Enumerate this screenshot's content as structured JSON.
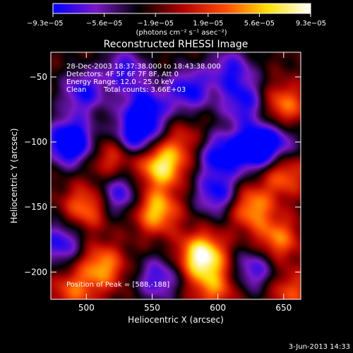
{
  "chart_data": {
    "type": "heatmap",
    "title": "Reconstructed RHESSI Image",
    "xlabel": "Heliocentric X (arcsec)",
    "ylabel": "Heliocentric Y (arcsec)",
    "xlim": [
      473,
      663
    ],
    "ylim": [
      -221,
      -31
    ],
    "x_ticks": [
      500,
      550,
      600,
      650
    ],
    "y_ticks": [
      -50,
      -100,
      -150,
      -200
    ],
    "x_tick_labels": [
      "500",
      "550",
      "600",
      "650"
    ],
    "y_tick_labels": [
      "−50",
      "−100",
      "−150",
      "−200"
    ],
    "colorbar": {
      "ticks": [
        -9.3e-05,
        -5.6e-05,
        -1.9e-05,
        1.9e-05,
        5.6e-05,
        9.3e-05
      ],
      "tick_labels": [
        "−9.3e−05",
        "−5.6e−05",
        "−1.9e−05",
        "1.9e−05",
        "5.6e−05",
        "9.3e−05"
      ],
      "unit_text": "(photons cm⁻² s⁻¹ asec⁻²)",
      "colors": [
        "#0000ff",
        "#7a18c8",
        "#000000",
        "#b00000",
        "#ff4a00",
        "#ffe100",
        "#ffffff"
      ]
    },
    "annotations": [
      "28-Dec-2003 18:37:38.000 to 18:43:38.000",
      "Detectors: 4F 5F 6F 7F 8F, Att 0",
      "Energy Range: 12.0 - 25.0 keV",
      "Clean",
      "Total counts: 3.66E+03"
    ],
    "peak_label": "Position of Peak = [588,-188]",
    "peak": [
      588,
      -188
    ],
    "sources": [
      {
        "x": 588,
        "y": -188,
        "v": 1.0
      },
      {
        "x": 557,
        "y": -118,
        "v": 0.85
      },
      {
        "x": 553,
        "y": -153,
        "v": 0.72
      },
      {
        "x": 512,
        "y": -196,
        "v": 0.62
      },
      {
        "x": 500,
        "y": -150,
        "v": 0.55
      },
      {
        "x": 625,
        "y": -150,
        "v": 0.62
      },
      {
        "x": 645,
        "y": -175,
        "v": 0.55
      },
      {
        "x": 650,
        "y": -125,
        "v": 0.5
      },
      {
        "x": 650,
        "y": -72,
        "v": 0.55
      },
      {
        "x": 520,
        "y": -112,
        "v": 0.42
      },
      {
        "x": 597,
        "y": -212,
        "v": 0.5
      },
      {
        "x": 490,
        "y": -215,
        "v": 0.45
      },
      {
        "x": 655,
        "y": -215,
        "v": 0.42
      },
      {
        "x": 575,
        "y": -100,
        "v": 0.3
      },
      {
        "x": 498,
        "y": -62,
        "v": -0.55
      },
      {
        "x": 545,
        "y": -75,
        "v": -0.65
      },
      {
        "x": 578,
        "y": -60,
        "v": -0.6
      },
      {
        "x": 620,
        "y": -70,
        "v": -0.55
      },
      {
        "x": 488,
        "y": -100,
        "v": -0.95
      },
      {
        "x": 538,
        "y": -95,
        "v": -0.7
      },
      {
        "x": 600,
        "y": -110,
        "v": -0.6
      },
      {
        "x": 627,
        "y": -105,
        "v": -0.85
      },
      {
        "x": 600,
        "y": -140,
        "v": -0.6
      },
      {
        "x": 525,
        "y": -140,
        "v": -0.55
      },
      {
        "x": 645,
        "y": -100,
        "v": -0.45
      },
      {
        "x": 480,
        "y": -178,
        "v": -0.55
      },
      {
        "x": 555,
        "y": -205,
        "v": -0.5
      },
      {
        "x": 628,
        "y": -198,
        "v": -0.5
      },
      {
        "x": 610,
        "y": -45,
        "v": -0.5
      },
      {
        "x": 530,
        "y": -45,
        "v": -0.5
      }
    ]
  },
  "footer": {
    "date": "3-Jun-2013 14:33"
  }
}
